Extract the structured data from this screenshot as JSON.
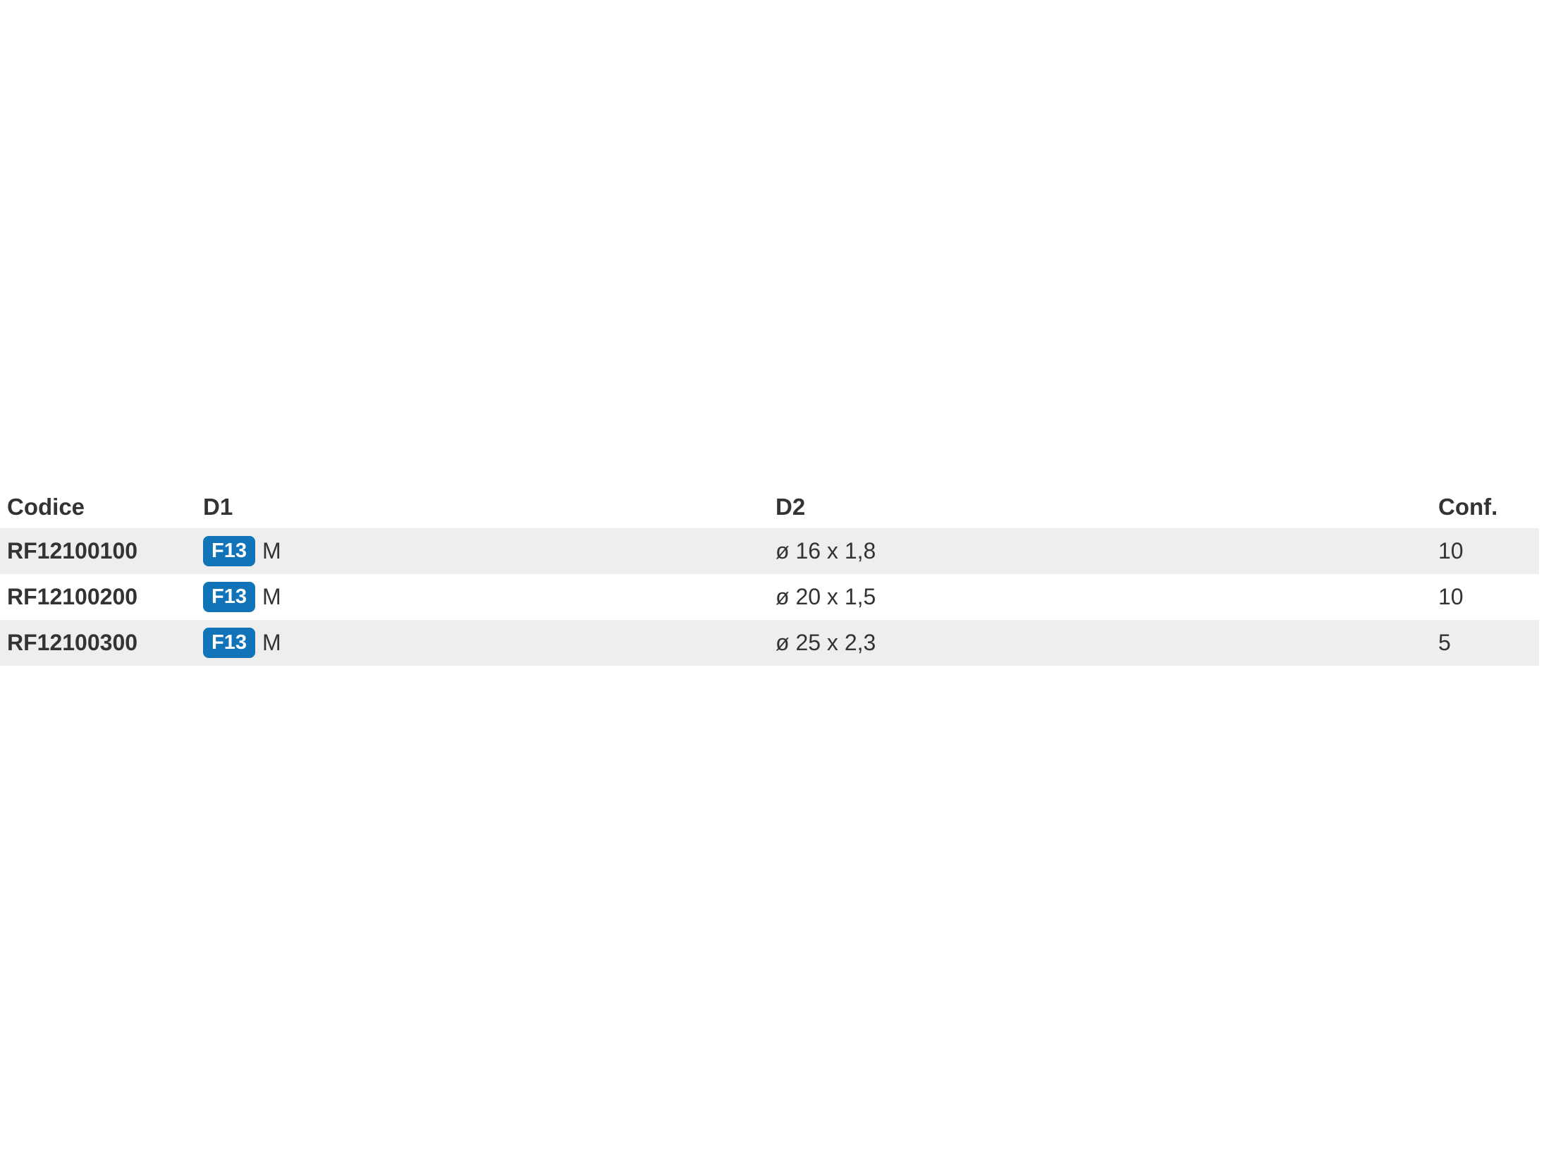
{
  "colors": {
    "badge_bg": "#1173b8",
    "badge_text": "#ffffff",
    "row_stripe": "#eeeeee",
    "text": "#333333",
    "page_bg": "#ffffff"
  },
  "table": {
    "columns": {
      "codice": "Codice",
      "d1": "D1",
      "d2": "D2",
      "conf": "Conf."
    },
    "rows": [
      {
        "codice": "RF12100100",
        "d1_badge": "F13",
        "d1_text": "M",
        "d2": "ø 16 x 1,8",
        "conf": "10"
      },
      {
        "codice": "RF12100200",
        "d1_badge": "F13",
        "d1_text": "M",
        "d2": "ø 20 x 1,5",
        "conf": "10"
      },
      {
        "codice": "RF12100300",
        "d1_badge": "F13",
        "d1_text": "M",
        "d2": "ø 25 x 2,3",
        "conf": "5"
      }
    ]
  }
}
